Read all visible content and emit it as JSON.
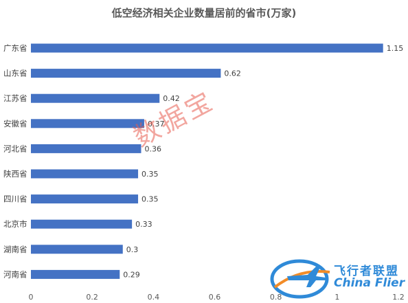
{
  "chart_data": {
    "type": "bar",
    "orientation": "horizontal",
    "title": "低空经济相关企业数量居前的省市(万家)",
    "categories": [
      "广东省",
      "山东省",
      "江苏省",
      "安徽省",
      "河北省",
      "陕西省",
      "四川省",
      "北京市",
      "湖南省",
      "河南省"
    ],
    "values": [
      1.15,
      0.62,
      0.42,
      0.37,
      0.36,
      0.35,
      0.35,
      0.33,
      0.3,
      0.29
    ],
    "value_labels": [
      "1.15",
      "0.62",
      "0.42",
      "0.37",
      "0.36",
      "0.35",
      "0.35",
      "0.33",
      "0.3",
      "0.29"
    ],
    "xlim": [
      0,
      1.2
    ],
    "xticks": [
      "0",
      "0.2",
      "0.4",
      "0.6",
      "0.8",
      "1",
      "1.2"
    ],
    "bar_color": "#4472c4",
    "grid": false,
    "legend": "none"
  },
  "watermark": "数据宝",
  "logo": {
    "name_cn": "飞行者联盟",
    "name_en": "China Flier",
    "colors": {
      "blue": "#2f8ad8",
      "orange": "#f28c28"
    }
  }
}
